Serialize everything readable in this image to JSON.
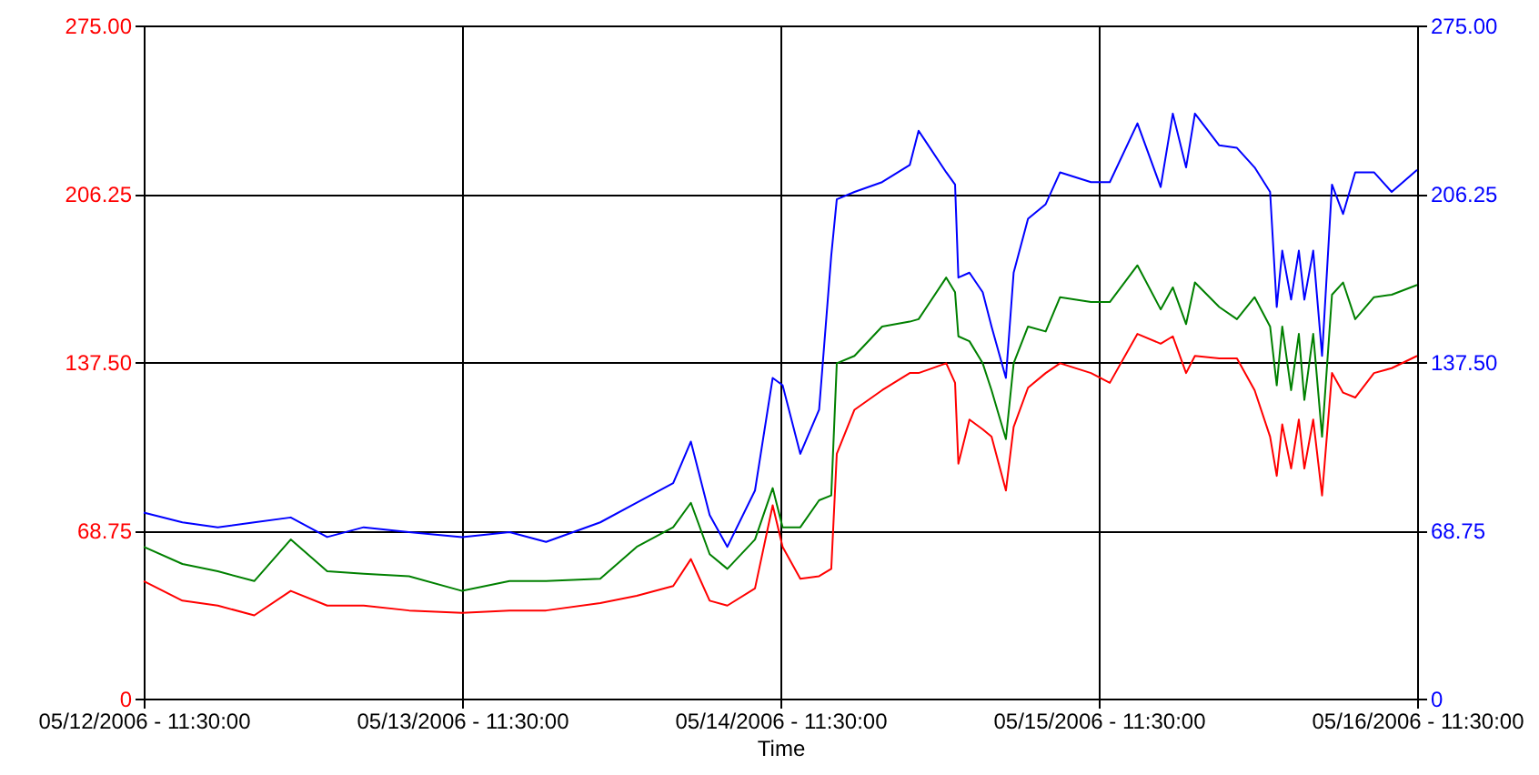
{
  "chart_data": {
    "type": "line",
    "xlabel": "Time",
    "x": [
      "2006-05-12T11:30",
      "2006-05-12T14:25",
      "2006-05-12T17:05",
      "2006-05-12T19:50",
      "2006-05-12T22:35",
      "2006-05-13T01:20",
      "2006-05-13T04:05",
      "2006-05-13T07:30",
      "2006-05-13T11:30",
      "2006-05-13T15:05",
      "2006-05-13T17:50",
      "2006-05-13T21:55",
      "2006-05-14T00:40",
      "2006-05-14T03:25",
      "2006-05-14T04:45",
      "2006-05-14T06:10",
      "2006-05-14T07:30",
      "2006-05-14T09:35",
      "2006-05-14T10:55",
      "2006-05-14T11:40",
      "2006-05-14T13:00",
      "2006-05-14T14:25",
      "2006-05-14T15:20",
      "2006-05-14T15:45",
      "2006-05-14T17:05",
      "2006-05-14T19:10",
      "2006-05-14T21:15",
      "2006-05-14T21:55",
      "2006-05-15T00:00",
      "2006-05-15T00:40",
      "2006-05-15T00:55",
      "2006-05-15T01:45",
      "2006-05-15T02:45",
      "2006-05-15T03:25",
      "2006-05-15T04:30",
      "2006-05-15T05:05",
      "2006-05-15T06:10",
      "2006-05-15T07:30",
      "2006-05-15T08:35",
      "2006-05-15T10:55",
      "2006-05-15T12:20",
      "2006-05-15T14:25",
      "2006-05-15T16:10",
      "2006-05-15T17:05",
      "2006-05-15T18:05",
      "2006-05-15T18:45",
      "2006-05-15T20:35",
      "2006-05-15T21:55",
      "2006-05-15T23:15",
      "2006-05-16T00:25",
      "2006-05-16T00:55",
      "2006-05-16T01:20",
      "2006-05-16T02:00",
      "2006-05-16T02:35",
      "2006-05-16T03:00",
      "2006-05-16T03:40",
      "2006-05-16T04:20",
      "2006-05-16T05:05",
      "2006-05-16T05:55",
      "2006-05-16T06:50",
      "2006-05-16T08:15",
      "2006-05-16T09:35",
      "2006-05-16T11:30"
    ],
    "series": [
      {
        "color": "#ff0000",
        "values": [
          48,
          40,
          38,
          34,
          44,
          38,
          38,
          36,
          35,
          36,
          36,
          39,
          42,
          46,
          57,
          40,
          38,
          45,
          79,
          62,
          49,
          50,
          53,
          100,
          118,
          126,
          133,
          133,
          137,
          129,
          96,
          114,
          110,
          107,
          85,
          111,
          127,
          133,
          137,
          133,
          129,
          149,
          145,
          148,
          133,
          140,
          139,
          139,
          126,
          107,
          91,
          112,
          94,
          114,
          94,
          114,
          83,
          133,
          125,
          123,
          133,
          135,
          140
        ]
      },
      {
        "color": "#008000",
        "values": [
          62,
          55,
          52,
          48,
          65,
          52,
          51,
          50,
          44,
          48,
          48,
          49,
          62,
          70,
          80,
          59,
          53,
          65,
          86,
          70,
          70,
          81,
          83,
          137,
          140,
          152,
          154,
          155,
          172,
          166,
          148,
          146,
          137,
          126,
          106,
          137,
          152,
          150,
          164,
          162,
          162,
          177,
          159,
          168,
          153,
          170,
          160,
          155,
          164,
          152,
          128,
          152,
          126,
          149,
          122,
          149,
          107,
          165,
          170,
          155,
          164,
          165,
          169
        ]
      },
      {
        "color": "#0000ff",
        "axis": "y2",
        "values": [
          76,
          72,
          70,
          72,
          74,
          66,
          70,
          68,
          66,
          68,
          64,
          72,
          80,
          88,
          105,
          75,
          62,
          85,
          131,
          128,
          100,
          118,
          181,
          204,
          207,
          211,
          218,
          232,
          215,
          210,
          172,
          174,
          166,
          152,
          131,
          174,
          196,
          202,
          215,
          211,
          211,
          235,
          209,
          239,
          217,
          239,
          226,
          225,
          217,
          207,
          160,
          183,
          163,
          183,
          163,
          183,
          140,
          210,
          198,
          215,
          215,
          207,
          216
        ]
      }
    ],
    "xlim": [
      "2006-05-12T11:30",
      "2006-05-16T11:30"
    ],
    "xticks": [
      {
        "value": "2006-05-12T11:30",
        "label": "05/12/2006 - 11:30:00"
      },
      {
        "value": "2006-05-13T11:30",
        "label": "05/13/2006 - 11:30:00"
      },
      {
        "value": "2006-05-14T11:30",
        "label": "05/14/2006 - 11:30:00"
      },
      {
        "value": "2006-05-15T11:30",
        "label": "05/15/2006 - 11:30:00"
      },
      {
        "value": "2006-05-16T11:30",
        "label": "05/16/2006 - 11:30:00"
      }
    ],
    "ylim": [
      0,
      275
    ],
    "yticks": [
      {
        "value": 0,
        "label": "0"
      },
      {
        "value": 68.75,
        "label": "68.75"
      },
      {
        "value": 137.5,
        "label": "137.50"
      },
      {
        "value": 206.25,
        "label": "206.25"
      },
      {
        "value": 275,
        "label": "275.00"
      }
    ],
    "y2lim": [
      0,
      275
    ],
    "y2ticks": [
      {
        "value": 0,
        "label": "0"
      },
      {
        "value": 68.75,
        "label": "68.75"
      },
      {
        "value": 137.5,
        "label": "137.50"
      },
      {
        "value": 206.25,
        "label": "206.25"
      },
      {
        "value": 275,
        "label": "275.00"
      }
    ],
    "grid": true,
    "line_style": "solid",
    "marker": "none"
  }
}
